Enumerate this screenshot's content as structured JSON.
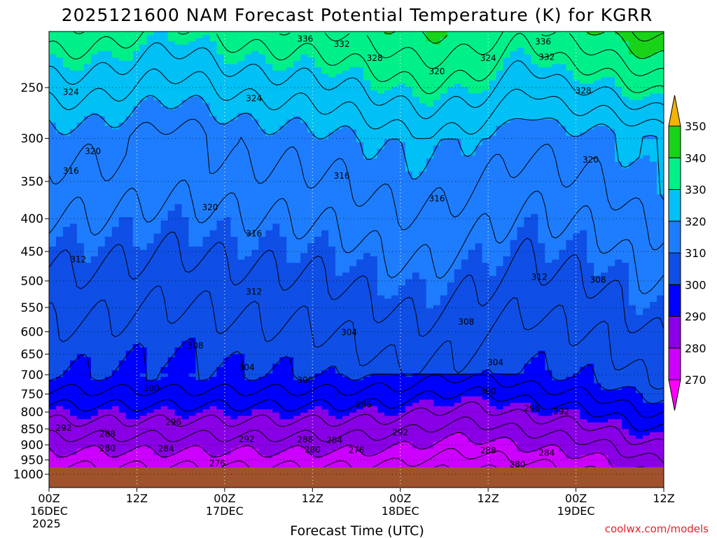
{
  "chart_data": {
    "type": "heatmap",
    "title": "2025121600 NAM Forecast Potential Temperature (K) for KGRR",
    "xlabel": "Forecast Time (UTC)",
    "ylabel": "",
    "y_scale": "log",
    "y_ticks": [
      250,
      300,
      350,
      400,
      450,
      500,
      550,
      600,
      650,
      700,
      750,
      800,
      850,
      900,
      950,
      1000
    ],
    "y_tick_labels": [
      "250",
      "300",
      "350",
      "400",
      "450",
      "500",
      "550",
      "600",
      "650",
      "700",
      "750",
      "800",
      "850",
      "900",
      "950",
      "1000"
    ],
    "ylim": [
      1000,
      200
    ],
    "x_ticks": [
      {
        "hour": 0,
        "lines": [
          "00Z",
          "16DEC",
          "2025"
        ]
      },
      {
        "hour": 12,
        "lines": [
          "12Z"
        ]
      },
      {
        "hour": 24,
        "lines": [
          "00Z",
          "17DEC"
        ]
      },
      {
        "hour": 36,
        "lines": [
          "12Z"
        ]
      },
      {
        "hour": 48,
        "lines": [
          "00Z",
          "18DEC"
        ]
      },
      {
        "hour": 60,
        "lines": [
          "12Z"
        ]
      },
      {
        "hour": 72,
        "lines": [
          "00Z",
          "19DEC"
        ]
      },
      {
        "hour": 84,
        "lines": [
          "12Z"
        ]
      }
    ],
    "xlim": [
      0,
      84
    ],
    "grid": true,
    "colorbar": {
      "levels": [
        270,
        280,
        290,
        300,
        310,
        320,
        330,
        340,
        350
      ],
      "labels": [
        "270",
        "280",
        "290",
        "300",
        "310",
        "320",
        "330",
        "340",
        "350"
      ],
      "colors": [
        "#ff00ff",
        "#cc00ff",
        "#8a00e6",
        "#0000ff",
        "#0f4fe6",
        "#1e7dff",
        "#00c0f5",
        "#00f089",
        "#18d318",
        "#ffff00",
        "#f5b400"
      ]
    },
    "ground_color": "#a0522d",
    "contour_interval": 4,
    "contour_labels": [
      {
        "value": "336",
        "hour": 35,
        "p": 210
      },
      {
        "value": "332",
        "hour": 40,
        "p": 214
      },
      {
        "value": "328",
        "hour": 44.5,
        "p": 225
      },
      {
        "value": "320",
        "hour": 53,
        "p": 236
      },
      {
        "value": "324",
        "hour": 60,
        "p": 225
      },
      {
        "value": "336",
        "hour": 67.5,
        "p": 212
      },
      {
        "value": "332",
        "hour": 68,
        "p": 224
      },
      {
        "value": "328",
        "hour": 73,
        "p": 253
      },
      {
        "value": "324",
        "hour": 3,
        "p": 254
      },
      {
        "value": "324",
        "hour": 28,
        "p": 260
      },
      {
        "value": "320",
        "hour": 6,
        "p": 314
      },
      {
        "value": "316",
        "hour": 3,
        "p": 337
      },
      {
        "value": "320",
        "hour": 74,
        "p": 324
      },
      {
        "value": "316",
        "hour": 40,
        "p": 343
      },
      {
        "value": "316",
        "hour": 53,
        "p": 372
      },
      {
        "value": "320",
        "hour": 22,
        "p": 384
      },
      {
        "value": "316",
        "hour": 28,
        "p": 422
      },
      {
        "value": "312",
        "hour": 4,
        "p": 463
      },
      {
        "value": "312",
        "hour": 28,
        "p": 520
      },
      {
        "value": "312",
        "hour": 67,
        "p": 493
      },
      {
        "value": "308",
        "hour": 75,
        "p": 498
      },
      {
        "value": "308",
        "hour": 57,
        "p": 579
      },
      {
        "value": "304",
        "hour": 41,
        "p": 601
      },
      {
        "value": "308",
        "hour": 20,
        "p": 631
      },
      {
        "value": "304",
        "hour": 27,
        "p": 682
      },
      {
        "value": "304",
        "hour": 61,
        "p": 670
      },
      {
        "value": "300",
        "hour": 35,
        "p": 713
      },
      {
        "value": "300",
        "hour": 14,
        "p": 735
      },
      {
        "value": "300",
        "hour": 60,
        "p": 743
      },
      {
        "value": "296",
        "hour": 43,
        "p": 779
      },
      {
        "value": "296",
        "hour": 66,
        "p": 790
      },
      {
        "value": "292",
        "hour": 70,
        "p": 799
      },
      {
        "value": "296",
        "hour": 17,
        "p": 829
      },
      {
        "value": "292",
        "hour": 2,
        "p": 847
      },
      {
        "value": "292",
        "hour": 27,
        "p": 882
      },
      {
        "value": "292",
        "hour": 48,
        "p": 861
      },
      {
        "value": "288",
        "hour": 8,
        "p": 866
      },
      {
        "value": "288",
        "hour": 35,
        "p": 883
      },
      {
        "value": "284",
        "hour": 39,
        "p": 885
      },
      {
        "value": "288",
        "hour": 60,
        "p": 918
      },
      {
        "value": "284",
        "hour": 68,
        "p": 926
      },
      {
        "value": "280",
        "hour": 8,
        "p": 911
      },
      {
        "value": "284",
        "hour": 16,
        "p": 912
      },
      {
        "value": "280",
        "hour": 36,
        "p": 916
      },
      {
        "value": "276",
        "hour": 42,
        "p": 917
      },
      {
        "value": "276",
        "hour": 23,
        "p": 962
      },
      {
        "value": "280",
        "hour": 64,
        "p": 966
      }
    ]
  },
  "source_label": "coolwx.com/models"
}
